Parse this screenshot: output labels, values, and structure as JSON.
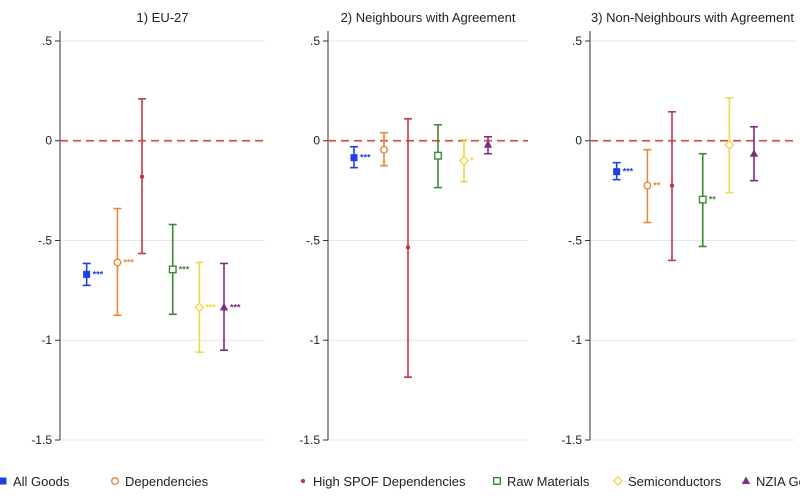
{
  "chart_data": {
    "type": "scatter",
    "subtype": "coefficient plot with confidence intervals",
    "ylim": [
      -1.5,
      0.55
    ],
    "yticks": [
      {
        "value": 0.5,
        "label": ".5"
      },
      {
        "value": 0,
        "label": "0"
      },
      {
        "value": -0.5,
        "label": "-.5"
      },
      {
        "value": -1,
        "label": "-1"
      },
      {
        "value": -1.5,
        "label": "-1.5"
      }
    ],
    "reference_line": {
      "value": 0,
      "color": "#d6504a",
      "style": "dashed"
    },
    "grid": true,
    "legend_placement": "bottom",
    "series": [
      {
        "name": "All Goods",
        "color": "#1f3ee8",
        "marker": "square-filled"
      },
      {
        "name": "Dependencies",
        "color": "#e8893a",
        "marker": "circle-open"
      },
      {
        "name": "High SPOF Dependencies",
        "color": "#c0394e",
        "marker": "dot"
      },
      {
        "name": "Raw Materials",
        "color": "#3f8a35",
        "marker": "square-open"
      },
      {
        "name": "Semiconductors",
        "color": "#f2d548",
        "marker": "diamond-open"
      },
      {
        "name": "NZIA Goods",
        "color": "#7b2d82",
        "marker": "triangle-filled"
      }
    ],
    "panels": [
      {
        "title": "1) EU-27",
        "points": [
          {
            "series": 0,
            "est": -0.67,
            "lo": -0.725,
            "hi": -0.615,
            "sig": "***"
          },
          {
            "series": 1,
            "est": -0.61,
            "lo": -0.875,
            "hi": -0.34,
            "sig": "***"
          },
          {
            "series": 2,
            "est": -0.18,
            "lo": -0.565,
            "hi": 0.21,
            "sig": ""
          },
          {
            "series": 3,
            "est": -0.645,
            "lo": -0.87,
            "hi": -0.42,
            "sig": "***"
          },
          {
            "series": 4,
            "est": -0.835,
            "lo": -1.06,
            "hi": -0.61,
            "sig": "***"
          },
          {
            "series": 5,
            "est": -0.835,
            "lo": -1.05,
            "hi": -0.615,
            "sig": "***"
          }
        ]
      },
      {
        "title": "2) Neighbours with Agreement",
        "points": [
          {
            "series": 0,
            "est": -0.085,
            "lo": -0.135,
            "hi": -0.03,
            "sig": "***"
          },
          {
            "series": 1,
            "est": -0.045,
            "lo": -0.125,
            "hi": 0.04,
            "sig": ""
          },
          {
            "series": 2,
            "est": -0.535,
            "lo": -1.185,
            "hi": 0.11,
            "sig": ""
          },
          {
            "series": 3,
            "est": -0.075,
            "lo": -0.235,
            "hi": 0.08,
            "sig": ""
          },
          {
            "series": 4,
            "est": -0.1,
            "lo": -0.205,
            "hi": 0.005,
            "sig": "*"
          },
          {
            "series": 5,
            "est": -0.02,
            "lo": -0.065,
            "hi": 0.02,
            "sig": ""
          }
        ]
      },
      {
        "title": "3) Non-Neighbours with Agreement",
        "points": [
          {
            "series": 0,
            "est": -0.155,
            "lo": -0.195,
            "hi": -0.11,
            "sig": "***"
          },
          {
            "series": 1,
            "est": -0.225,
            "lo": -0.41,
            "hi": -0.045,
            "sig": "**"
          },
          {
            "series": 2,
            "est": -0.225,
            "lo": -0.6,
            "hi": 0.145,
            "sig": ""
          },
          {
            "series": 3,
            "est": -0.295,
            "lo": -0.53,
            "hi": -0.065,
            "sig": "**"
          },
          {
            "series": 4,
            "est": -0.02,
            "lo": -0.26,
            "hi": 0.215,
            "sig": ""
          },
          {
            "series": 5,
            "est": -0.065,
            "lo": -0.2,
            "hi": 0.07,
            "sig": ""
          }
        ]
      }
    ]
  }
}
